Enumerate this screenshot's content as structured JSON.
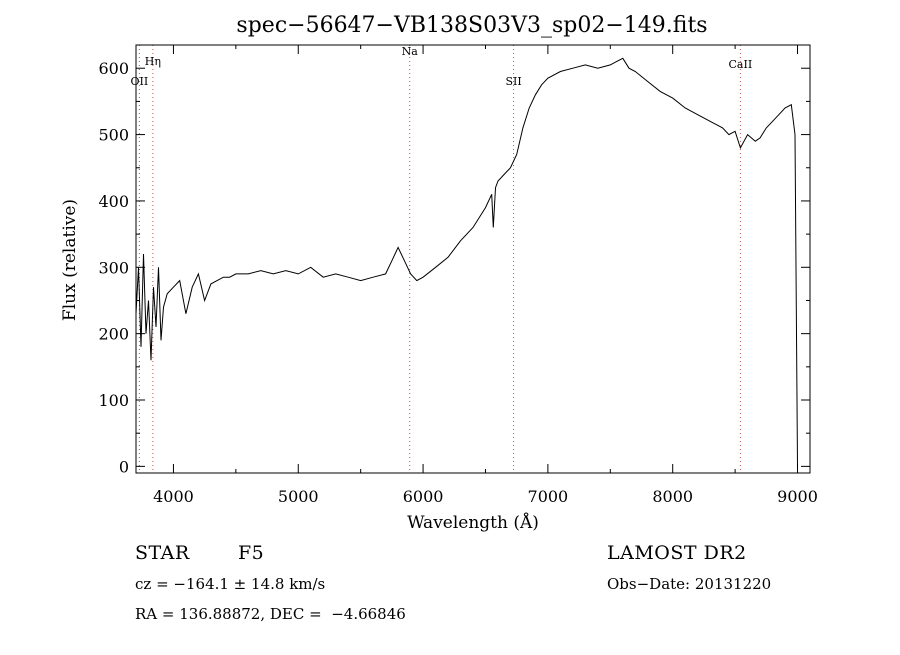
{
  "chart_data": {
    "type": "line",
    "title": "spec−56647−VB138S03V3_sp02−149.fits",
    "xlabel": "Wavelength (Å)",
    "ylabel": "Flux (relative)",
    "xlim": [
      3700,
      9100
    ],
    "ylim": [
      -10,
      635
    ],
    "xticks": [
      4000,
      5000,
      6000,
      7000,
      8000,
      9000
    ],
    "yticks": [
      0,
      100,
      200,
      300,
      400,
      500,
      600
    ],
    "grid": false,
    "series": [
      {
        "x": [
          3700,
          3720,
          3740,
          3760,
          3780,
          3800,
          3820,
          3840,
          3860,
          3880,
          3900,
          3920,
          3950,
          4000,
          4050,
          4100,
          4150,
          4200,
          4250,
          4300,
          4350,
          4400,
          4450,
          4500,
          4600,
          4700,
          4800,
          4900,
          5000,
          5100,
          5200,
          5300,
          5400,
          5500,
          5600,
          5700,
          5750,
          5800,
          5850,
          5900,
          5950,
          6000,
          6100,
          6200,
          6300,
          6400,
          6500,
          6550,
          6563,
          6580,
          6600,
          6650,
          6700,
          6750,
          6800,
          6850,
          6900,
          6950,
          7000,
          7100,
          7200,
          7300,
          7400,
          7500,
          7550,
          7600,
          7650,
          7700,
          7800,
          7900,
          8000,
          8100,
          8200,
          8300,
          8400,
          8450,
          8500,
          8542,
          8600,
          8662,
          8700,
          8750,
          8800,
          8850,
          8900,
          8950,
          8980,
          9000
        ],
        "y": [
          230,
          300,
          180,
          320,
          200,
          250,
          160,
          270,
          210,
          300,
          190,
          240,
          260,
          270,
          280,
          230,
          270,
          290,
          250,
          275,
          280,
          285,
          285,
          290,
          290,
          295,
          290,
          295,
          290,
          300,
          285,
          290,
          285,
          280,
          285,
          290,
          310,
          330,
          310,
          290,
          280,
          285,
          300,
          315,
          340,
          360,
          390,
          410,
          360,
          420,
          430,
          440,
          450,
          470,
          510,
          540,
          560,
          575,
          585,
          595,
          600,
          605,
          600,
          605,
          610,
          615,
          600,
          595,
          580,
          565,
          555,
          540,
          530,
          520,
          510,
          500,
          505,
          480,
          500,
          490,
          495,
          510,
          520,
          530,
          540,
          545,
          500,
          0
        ]
      }
    ],
    "lines": [
      {
        "label": "Hη",
        "x": 3835,
        "label_flux": 605
      },
      {
        "label": "OII",
        "x": 3727,
        "label_flux": 575
      },
      {
        "label": "Na",
        "x": 5893,
        "label_flux": 620
      },
      {
        "label": "SII",
        "x": 6725,
        "label_flux": 575
      },
      {
        "label": "CaII",
        "x": 8542,
        "label_flux": 600
      }
    ]
  },
  "info": {
    "object_type": "STAR",
    "subclass": "F5",
    "survey": "LAMOST DR2",
    "cz": "cz = −164.1 ± 14.8 km/s",
    "obs_date": "Obs−Date: 20131220",
    "coords": "RA = 136.88872, DEC =  −4.66846"
  },
  "colors": {
    "spectrum": "#000000",
    "marker_line": "#d44a4a",
    "axis": "#000000",
    "background": "#ffffff"
  }
}
